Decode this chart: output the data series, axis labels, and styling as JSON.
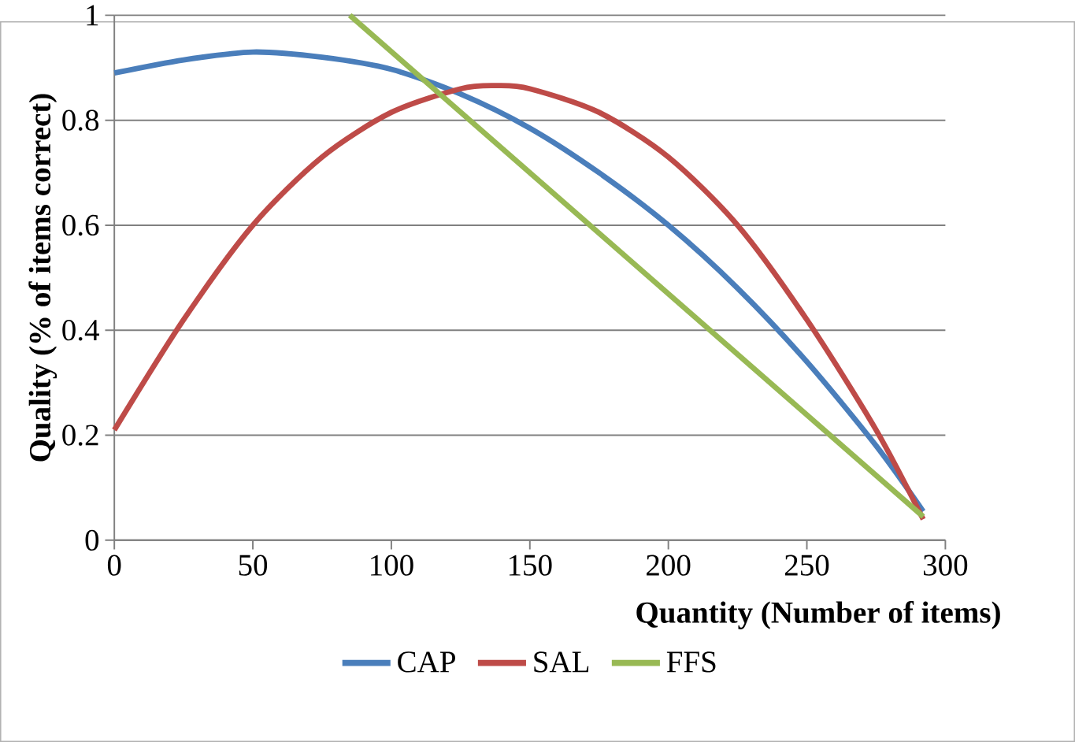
{
  "chart_data": {
    "type": "line",
    "xlabel": "Quantity (Number of items)",
    "ylabel": "Quality  (% of items correct)",
    "xlim": [
      0,
      300
    ],
    "xticks": [
      0,
      50,
      100,
      150,
      200,
      250,
      300
    ],
    "ylim": [
      0,
      1
    ],
    "yticks": [
      0,
      0.2,
      0.4,
      0.6,
      0.8,
      1
    ],
    "grid": "y",
    "legend": "bottom",
    "line_style": "solid",
    "marker": "none",
    "series": [
      {
        "name": "CAP",
        "color": "#4a7ebb",
        "x": [
          0,
          25,
          50,
          75,
          100,
          125,
          150,
          175,
          200,
          225,
          250,
          275,
          292
        ],
        "values": [
          0.89,
          0.915,
          0.93,
          0.92,
          0.897,
          0.85,
          0.785,
          0.7,
          0.6,
          0.48,
          0.34,
          0.18,
          0.055
        ]
      },
      {
        "name": "SAL",
        "color": "#be4b48",
        "x": [
          0,
          25,
          50,
          75,
          100,
          125,
          138,
          150,
          175,
          200,
          225,
          250,
          275,
          292
        ],
        "values": [
          0.21,
          0.42,
          0.6,
          0.73,
          0.815,
          0.86,
          0.866,
          0.86,
          0.815,
          0.73,
          0.6,
          0.42,
          0.21,
          0.04
        ]
      },
      {
        "name": "FFS",
        "color": "#98b954",
        "x": [
          85,
          292
        ],
        "values": [
          1,
          0.045
        ]
      }
    ]
  }
}
